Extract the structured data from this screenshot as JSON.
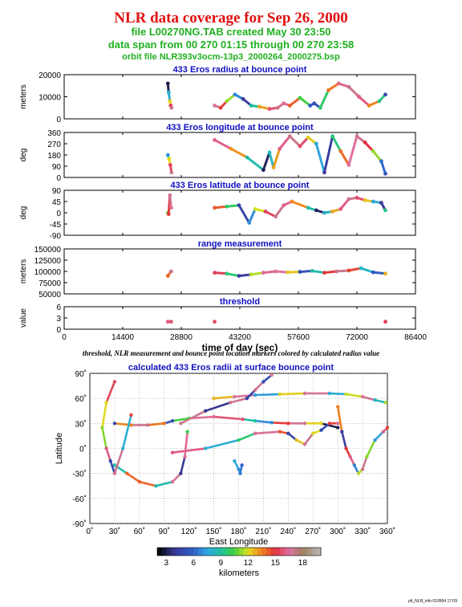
{
  "header": {
    "title": "NLR data coverage for Sep 26, 2000",
    "file_line": "file L00270NG.TAB created May 30 23:50",
    "span_line": "data span from 00 270 01:15 through 00 270 23:58",
    "orbit_line": "orbit file NLR393v3ocm-13p3_2000264_2000275.bsp"
  },
  "footer": "plt_NLR_info 010904 17:09",
  "colors": {
    "title": "#e01010",
    "subtitle": "#20b020",
    "panel_title": "#1010c0"
  },
  "chart_data": [
    {
      "type": "scatter",
      "title": "433 Eros radius at bounce point",
      "xlabel": "",
      "ylabel": "meters",
      "xlim": [
        0,
        86400
      ],
      "ylim": [
        0,
        20000
      ],
      "yticks": [
        0,
        10000,
        20000
      ],
      "series": [
        {
          "x": [
            25500,
            25700,
            26000,
            26200,
            26400,
            37000,
            38500,
            40000,
            42000,
            44000,
            46000,
            48000,
            50500,
            52500,
            54000,
            55500,
            58000,
            60500,
            61500,
            63000,
            65000,
            67500,
            70000,
            72500,
            75000,
            77500,
            79000
          ],
          "y": [
            16000,
            12000,
            8000,
            6000,
            5000,
            6000,
            5000,
            8000,
            11000,
            9000,
            6000,
            5500,
            4500,
            5000,
            7000,
            6000,
            9500,
            6000,
            7000,
            5000,
            13000,
            16000,
            14500,
            10000,
            6000,
            8000,
            11000
          ]
        }
      ]
    },
    {
      "type": "scatter",
      "title": "433 Eros longitude at bounce point",
      "xlabel": "",
      "ylabel": "deg",
      "xlim": [
        0,
        86400
      ],
      "ylim": [
        0,
        360
      ],
      "yticks": [
        0,
        90,
        180,
        270,
        360
      ],
      "series": [
        {
          "x": [
            25500,
            25800,
            26100,
            26400,
            37000,
            41000,
            45000,
            49000,
            50500,
            51500,
            53000,
            55500,
            58000,
            60000,
            62000,
            64000,
            66000,
            68000,
            70000,
            72000,
            74000,
            76000,
            78000,
            79000
          ],
          "y": [
            180,
            150,
            100,
            40,
            300,
            230,
            160,
            60,
            200,
            80,
            230,
            330,
            250,
            320,
            270,
            40,
            330,
            210,
            100,
            330,
            280,
            210,
            130,
            30
          ]
        }
      ]
    },
    {
      "type": "scatter",
      "title": "433 Eros latitude at bounce point",
      "xlabel": "",
      "ylabel": "deg",
      "xlim": [
        0,
        86400
      ],
      "ylim": [
        -90,
        90
      ],
      "yticks": [
        -90,
        -45,
        0,
        45,
        90
      ],
      "series": [
        {
          "x": [
            25500,
            25700,
            26000,
            26300,
            37000,
            40000,
            43000,
            45500,
            47000,
            49500,
            52000,
            54000,
            56000,
            60000,
            62000,
            64000,
            66000,
            68000,
            70000,
            72000,
            74000,
            76000,
            78000,
            79000
          ],
          "y": [
            0,
            -5,
            70,
            20,
            20,
            25,
            30,
            -40,
            15,
            5,
            -15,
            30,
            45,
            20,
            10,
            0,
            5,
            15,
            55,
            60,
            50,
            45,
            40,
            10
          ]
        }
      ]
    },
    {
      "type": "scatter",
      "title": "range measurement",
      "xlabel": "",
      "ylabel": "meters",
      "xlim": [
        0,
        86400
      ],
      "ylim": [
        50000,
        150000
      ],
      "yticks": [
        50000,
        75000,
        100000,
        125000,
        150000
      ],
      "series": [
        {
          "x": [
            25500,
            26300,
            37000,
            40000,
            43000,
            46000,
            49000,
            52000,
            55000,
            58000,
            61000,
            64000,
            67000,
            70000,
            73000,
            76000,
            79000
          ],
          "y": [
            90000,
            100000,
            97000,
            95000,
            90000,
            93000,
            97000,
            100000,
            98000,
            99000,
            101000,
            97000,
            100000,
            102000,
            107000,
            98000,
            95000
          ]
        }
      ]
    },
    {
      "type": "scatter",
      "title": "threshold",
      "xlabel": "time of day (sec)",
      "ylabel": "value",
      "xlim": [
        0,
        86400
      ],
      "ylim": [
        0,
        6
      ],
      "yticks": [
        0,
        3,
        6
      ],
      "xticks": [
        0,
        14400,
        28800,
        43200,
        57600,
        72000,
        86400
      ],
      "series": [
        {
          "x": [
            25500,
            26300,
            37000,
            79000
          ],
          "y": [
            2,
            2,
            2,
            2
          ]
        }
      ]
    },
    {
      "type": "scatter",
      "caption": "threshold, NLR measurement and bounce point location markers colored by calculated radius value",
      "title": "calculated 433 Eros radii at surface bounce point",
      "xlabel": "East Longitude",
      "ylabel": "Latitude",
      "xlim": [
        0,
        360
      ],
      "ylim": [
        -90,
        90
      ],
      "xticks": [
        "0˚",
        "30˚",
        "60˚",
        "90˚",
        "120˚",
        "150˚",
        "180˚",
        "210˚",
        "240˚",
        "270˚",
        "300˚",
        "330˚",
        "360˚"
      ],
      "yticks": [
        "90˚",
        "60˚",
        "30˚",
        "0˚",
        "-30˚",
        "-60˚",
        "-90˚"
      ],
      "colorbar": {
        "label": "kilometers",
        "ticks": [
          3,
          6,
          9,
          12,
          15,
          18
        ],
        "range": [
          2,
          20
        ]
      },
      "series": [
        {
          "x": [
            300,
            280,
            260,
            240,
            220,
            200,
            185,
            150,
            120,
            100,
            90,
            70,
            50,
            30
          ],
          "y": [
            25,
            30,
            30,
            30,
            31,
            33,
            35,
            38,
            36,
            33,
            30,
            28,
            28,
            30
          ]
        },
        {
          "x": [
            100,
            140,
            180,
            200,
            230,
            240,
            250,
            260,
            270,
            280,
            290,
            300
          ],
          "y": [
            -5,
            0,
            10,
            18,
            20,
            18,
            10,
            5,
            18,
            22,
            30,
            30
          ]
        },
        {
          "x": [
            150,
            175,
            200,
            230,
            260,
            290,
            310,
            330,
            345,
            358
          ],
          "y": [
            60,
            62,
            64,
            65,
            66,
            66,
            65,
            62,
            58,
            55
          ]
        },
        {
          "x": [
            30,
            45,
            60,
            80,
            100,
            110,
            115,
            118
          ],
          "y": [
            -20,
            -30,
            -40,
            -45,
            -40,
            -30,
            -10,
            20
          ]
        },
        {
          "x": [
            110,
            140,
            170,
            190,
            200,
            210,
            220
          ],
          "y": [
            30,
            45,
            55,
            60,
            70,
            80,
            88
          ]
        },
        {
          "x": [
            175,
            180,
            182,
            184
          ],
          "y": [
            -15,
            -25,
            -30,
            -20
          ]
        },
        {
          "x": [
            300,
            305,
            310,
            315,
            320,
            325,
            330,
            335,
            345,
            355,
            360
          ],
          "y": [
            50,
            20,
            0,
            -10,
            -20,
            -30,
            -25,
            -10,
            10,
            20,
            25
          ]
        },
        {
          "x": [
            30,
            20,
            15,
            20,
            25,
            30,
            40,
            50
          ],
          "y": [
            80,
            55,
            25,
            0,
            -15,
            -30,
            0,
            40
          ]
        }
      ]
    }
  ]
}
